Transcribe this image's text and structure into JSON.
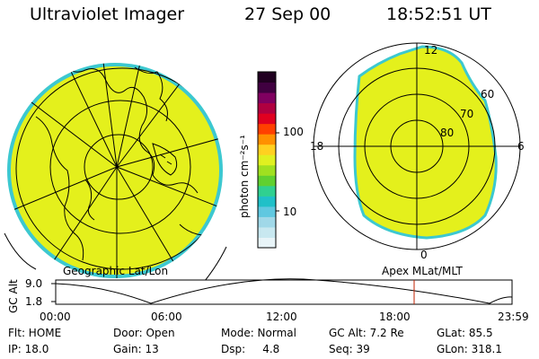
{
  "header": {
    "instrument": "Ultraviolet Imager",
    "date": "27 Sep 00",
    "time": "18:52:51 UT"
  },
  "colorbar": {
    "unit_label": "photon cm⁻²s⁻¹",
    "tick_labels": [
      "100",
      "10"
    ],
    "colors": [
      "#e8f4f8",
      "#c8e8f0",
      "#a0d8e8",
      "#60c8e0",
      "#20c0c8",
      "#30d090",
      "#60d030",
      "#a0e020",
      "#e0f020",
      "#ffd020",
      "#ff9000",
      "#ff4000",
      "#e00020",
      "#b00040",
      "#800060",
      "#400040",
      "#200020"
    ]
  },
  "left_panel": {
    "caption": "Geographic Lat/Lon",
    "fill_color": "#e4f01c"
  },
  "right_panel": {
    "caption": "Apex MLat/MLT",
    "mlt_labels": {
      "top": "12",
      "left": "18",
      "right": "6",
      "bottom": "0"
    },
    "mlat_labels": [
      "60",
      "70",
      "80"
    ],
    "fill_color": "#e4f01c"
  },
  "altitude_plot": {
    "ylabel": "GC Alt",
    "ytick_top": "9.0",
    "ytick_bottom": "1.8",
    "xticks": [
      "00:00",
      "06:00",
      "12:00",
      "18:00",
      "23:59"
    ],
    "marker_color": "#c02000"
  },
  "info": {
    "flt": "Flt: HOME",
    "door": "Door: Open",
    "mode": "Mode: Normal",
    "gc_alt": "GC Alt: 7.2 Re",
    "glat": "GLat:  85.5",
    "ip": "IP: 18.0",
    "gain": "Gain: 13",
    "dsp": "Dsp:     4.8",
    "seq": "Seq: 39",
    "glon": "GLon: 318.1"
  }
}
